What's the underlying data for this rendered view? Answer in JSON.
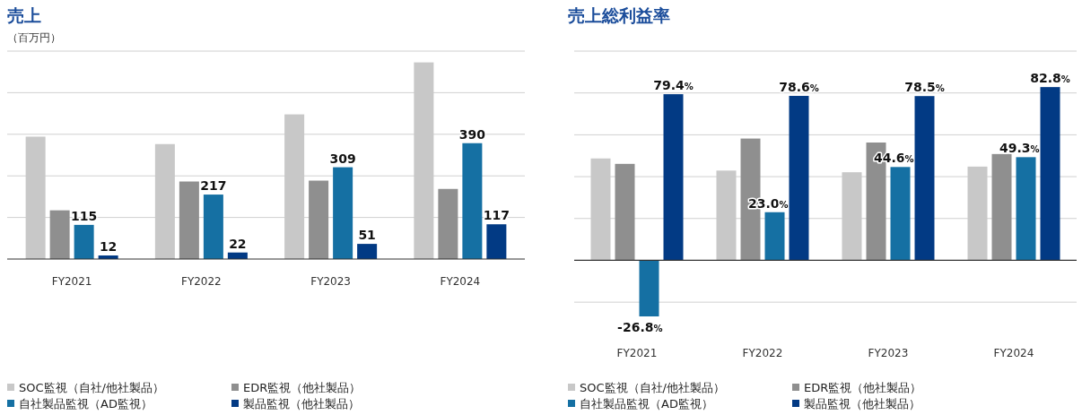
{
  "chart_data": [
    {
      "type": "bar",
      "title": "売上",
      "subtitle": "（百万円）",
      "categories": [
        "FY2021",
        "FY2022",
        "FY2023",
        "FY2024"
      ],
      "yticks": [
        {
          "value": 0,
          "label": null
        },
        {
          "value": 140,
          "label": null
        },
        {
          "value": 280,
          "label": null
        },
        {
          "value": 420,
          "label": null
        },
        {
          "value": 560,
          "label": null
        },
        {
          "value": 700,
          "label": null
        }
      ],
      "grid": "y",
      "tick_labels": "x",
      "legend": "bottom",
      "series": [
        {
          "name": "SOC監視（自社/他社製品）",
          "color": "#c8c8c8",
          "values": [
            412,
            387,
            487,
            662
          ]
        },
        {
          "name": "EDR監視（他社製品）",
          "color": "#8f8f8f",
          "values": [
            164,
            261,
            264,
            236
          ]
        },
        {
          "name": "自社製品監視（AD監視）",
          "color": "#1570a3",
          "values": [
            115,
            217,
            309,
            390
          ],
          "value_labels": [
            "115",
            "217",
            "309",
            "390"
          ]
        },
        {
          "name": "製品監視（他社製品）",
          "color": "#023a84",
          "values": [
            12,
            22,
            51,
            117
          ],
          "value_labels": [
            "12",
            "22",
            "51",
            "117"
          ]
        }
      ]
    },
    {
      "type": "bar",
      "title": "売上総利益率",
      "categories": [
        "FY2021",
        "FY2022",
        "FY2023",
        "FY2024"
      ],
      "yticks": [
        {
          "value": -20,
          "label": null
        },
        {
          "value": 0,
          "label": null
        },
        {
          "value": 20,
          "label": null
        },
        {
          "value": 40,
          "label": null
        },
        {
          "value": 60,
          "label": null
        },
        {
          "value": 80,
          "label": null
        },
        {
          "value": 100,
          "label": null
        }
      ],
      "grid": "y",
      "tick_labels": "x",
      "legend": "bottom",
      "series": [
        {
          "name": "SOC監視（自社/他社製品）",
          "color": "#c8c8c8",
          "values": [
            48.7,
            42.9,
            42.1,
            44.8
          ]
        },
        {
          "name": "EDR監視（他社製品）",
          "color": "#8f8f8f",
          "values": [
            46.1,
            58.2,
            56.3,
            50.8
          ]
        },
        {
          "name": "自社製品監視（AD監視）",
          "color": "#1570a3",
          "values": [
            -26.8,
            23.0,
            44.6,
            49.3
          ],
          "value_labels": [
            "-26.8%",
            "23.0%",
            "44.6%",
            "49.3%"
          ]
        },
        {
          "name": "製品監視（他社製品）",
          "color": "#023a84",
          "values": [
            79.4,
            78.6,
            78.5,
            82.8
          ],
          "value_labels": [
            "79.4%",
            "78.6%",
            "78.5%",
            "82.8%"
          ]
        }
      ]
    }
  ]
}
